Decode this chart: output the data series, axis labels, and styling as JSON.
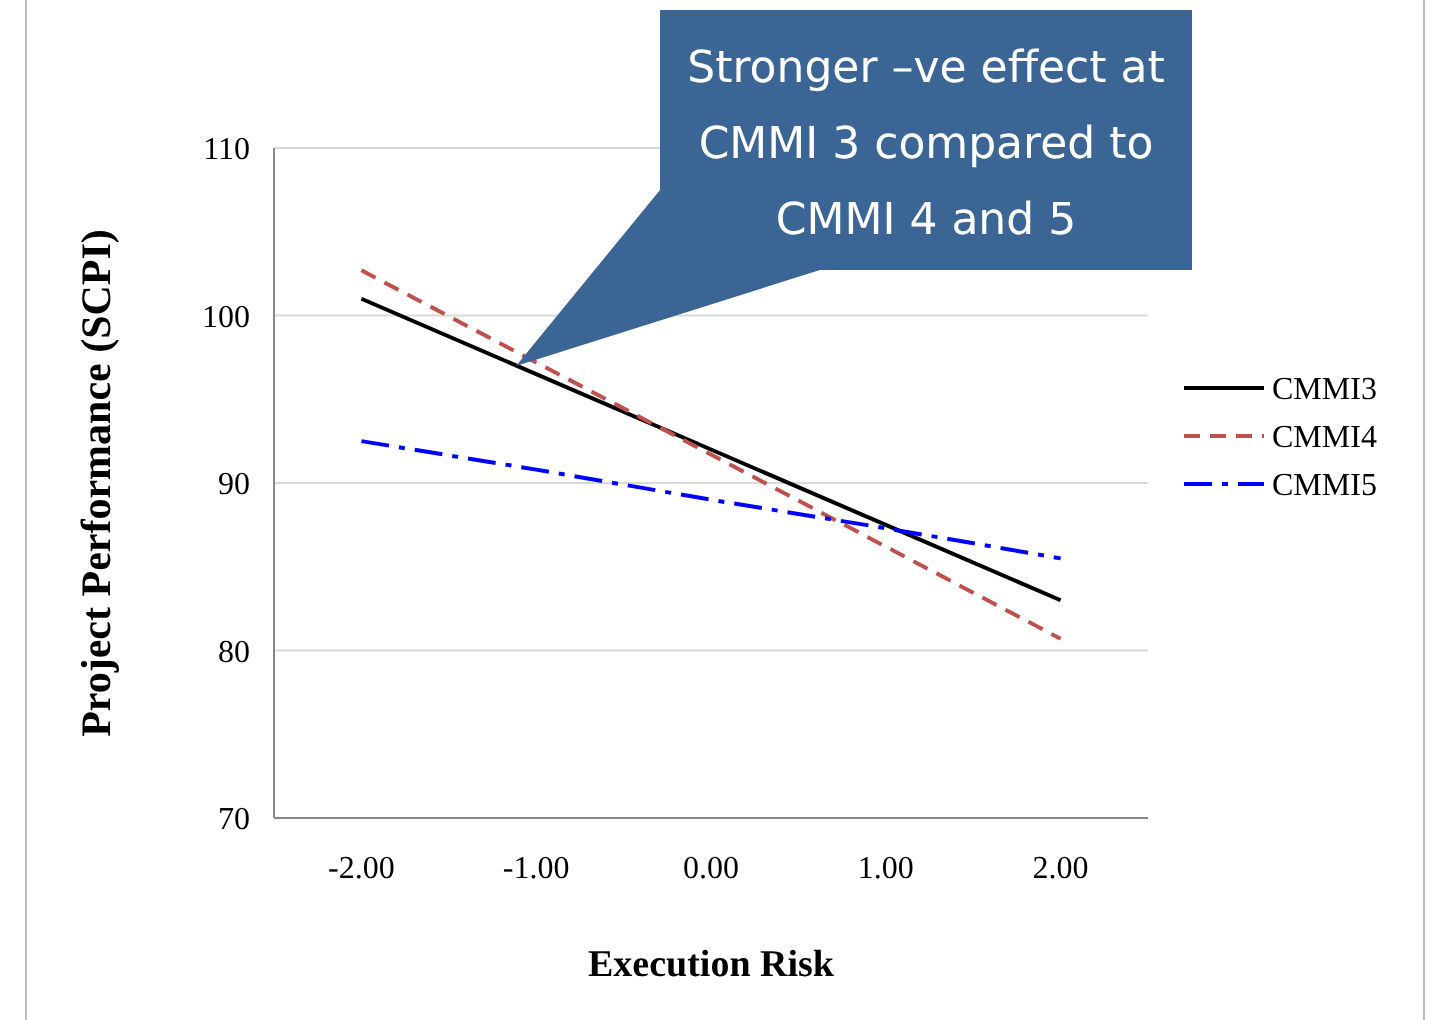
{
  "chart_data": {
    "type": "line",
    "xlabel": "Execution Risk",
    "ylabel": "Project Performance (SCPI)",
    "categories": [
      "-2.00",
      "-1.00",
      "0.00",
      "1.00",
      "2.00"
    ],
    "series": [
      {
        "name": "CMMI3",
        "color": "#000000",
        "line_style": "solid",
        "values": [
          101,
          96.5,
          92,
          87.5,
          83
        ]
      },
      {
        "name": "CMMI4",
        "color": "#c0504d",
        "line_style": "dashed",
        "values": [
          102.7,
          97.2,
          91.7,
          86.2,
          80.7
        ]
      },
      {
        "name": "CMMI5",
        "color": "#0000ff",
        "line_style": "dashdot",
        "values": [
          92.5,
          90.8,
          89,
          87.3,
          85.5
        ]
      }
    ],
    "ylim": [
      70,
      110
    ],
    "yticks": [
      70,
      80,
      90,
      100,
      110
    ],
    "grid": "y",
    "legend": "right",
    "marker": "none",
    "annotations": [
      "Stronger –ve effect at CMMI 3 compared to CMMI 4 and 5"
    ]
  }
}
